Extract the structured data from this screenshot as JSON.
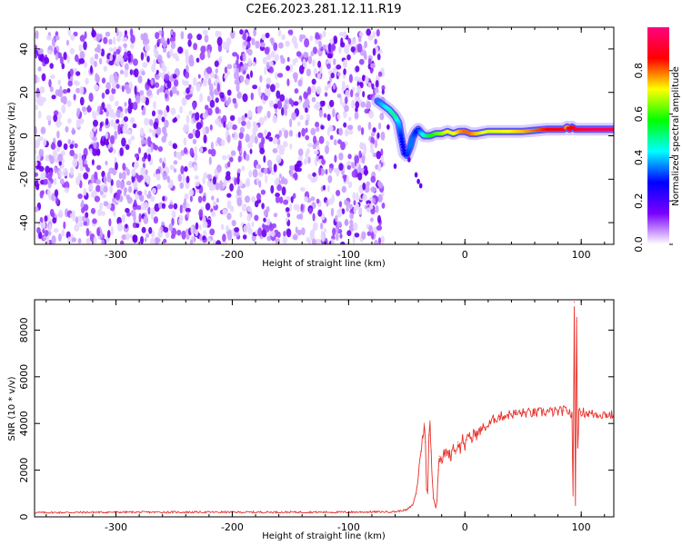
{
  "title": "C2E6.2023.281.12.11.R19",
  "chart_data": [
    {
      "type": "heatmap",
      "xlabel": "Height of straight line (km)",
      "ylabel": "Frequency (Hz)",
      "xlim": [
        -370,
        128
      ],
      "ylim": [
        -50,
        50
      ],
      "x_ticks": [
        -300,
        -200,
        -100,
        0,
        100
      ],
      "x_tick_labels": [
        "-300",
        "-200",
        "-100",
        "0",
        "100"
      ],
      "y_ticks": [
        -40,
        -20,
        0,
        20,
        40
      ],
      "y_tick_labels": [
        "-40",
        "-20",
        "0",
        "20",
        "40"
      ],
      "colorbar": {
        "label": "Normalized spectral amplitude",
        "ticks": [
          0.0,
          0.2,
          0.4,
          0.6,
          0.8
        ],
        "tick_labels": [
          "0.0",
          "0.2",
          "0.4",
          "0.6",
          "0.8"
        ],
        "range": [
          0,
          1
        ],
        "colormap": [
          "#ffffff",
          "#7a00ff",
          "#0000ff",
          "#00ffff",
          "#00ff00",
          "#ffff00",
          "#ff0000",
          "#ff0080"
        ]
      },
      "noise_region": {
        "x_range": [
          -370,
          -70
        ],
        "y_range": [
          -50,
          48
        ]
      },
      "ridge": {
        "x": [
          -75,
          -70,
          -65,
          -60,
          -57,
          -55,
          -52,
          -50,
          -47,
          -45,
          -42,
          -40,
          -37,
          -35,
          -30,
          -25,
          -20,
          -15,
          -10,
          -5,
          0,
          5,
          10,
          20,
          30,
          40,
          50,
          60,
          70,
          80,
          85,
          88,
          90,
          92,
          95,
          100,
          110,
          120,
          128
        ],
        "y": [
          16,
          14,
          12,
          9,
          6,
          0,
          -8,
          -9,
          -5,
          -1,
          2,
          3,
          1,
          0,
          0,
          1,
          1,
          2,
          1,
          2,
          2,
          1,
          1,
          2,
          2,
          2,
          2,
          2.5,
          3,
          3,
          3,
          4,
          3,
          4,
          3,
          3,
          3,
          3,
          3
        ],
        "amplitude": [
          0.35,
          0.4,
          0.45,
          0.5,
          0.4,
          0.3,
          0.25,
          0.3,
          0.35,
          0.35,
          0.3,
          0.3,
          0.4,
          0.45,
          0.55,
          0.6,
          0.65,
          0.7,
          0.7,
          0.75,
          0.8,
          0.8,
          0.75,
          0.7,
          0.7,
          0.72,
          0.75,
          0.8,
          0.85,
          0.88,
          0.9,
          0.75,
          0.9,
          0.85,
          0.9,
          0.92,
          0.95,
          0.95,
          0.95
        ]
      }
    },
    {
      "type": "line",
      "xlabel": "Height of straight line (km)",
      "ylabel": "SNR (10 * v/v)",
      "xlim": [
        -370,
        128
      ],
      "ylim": [
        0,
        9300
      ],
      "x_ticks": [
        -300,
        -200,
        -100,
        0,
        100
      ],
      "x_tick_labels": [
        "-300",
        "-200",
        "-100",
        "0",
        "100"
      ],
      "y_ticks": [
        0,
        2000,
        4000,
        6000,
        8000
      ],
      "y_tick_labels": [
        "0",
        "2000",
        "4000",
        "6000",
        "8000"
      ],
      "color": "#e8302a",
      "series": [
        {
          "x": [
            -370,
            -300,
            -200,
            -100,
            -60,
            -50,
            -45,
            -42,
            -40,
            -38,
            -36,
            -35,
            -34,
            -33,
            -32,
            -31,
            -30,
            -29,
            -28,
            -27,
            -26,
            -25,
            -24,
            -23,
            -22,
            -20,
            -18,
            -15,
            -12,
            -10,
            -8,
            -6,
            -4,
            -2,
            0,
            2,
            4,
            6,
            8,
            10,
            15,
            20,
            25,
            30,
            40,
            50,
            60,
            70,
            80,
            85,
            88,
            90,
            92,
            93,
            94,
            95,
            96,
            97,
            98,
            100,
            110,
            120,
            128
          ],
          "y": [
            180,
            200,
            200,
            200,
            220,
            300,
            500,
            1000,
            1800,
            2800,
            3500,
            4000,
            3200,
            1200,
            1000,
            3500,
            4100,
            2800,
            1500,
            800,
            600,
            400,
            700,
            2000,
            2600,
            2300,
            2700,
            2800,
            2600,
            3100,
            2700,
            3200,
            2900,
            3400,
            3000,
            3300,
            3600,
            3200,
            3700,
            3500,
            3800,
            3900,
            4200,
            4300,
            4400,
            4450,
            4450,
            4500,
            4500,
            4550,
            4550,
            4500,
            4300,
            900,
            9200,
            500,
            8400,
            3000,
            4400,
            4500,
            4400,
            4400,
            4350
          ]
        }
      ]
    }
  ]
}
